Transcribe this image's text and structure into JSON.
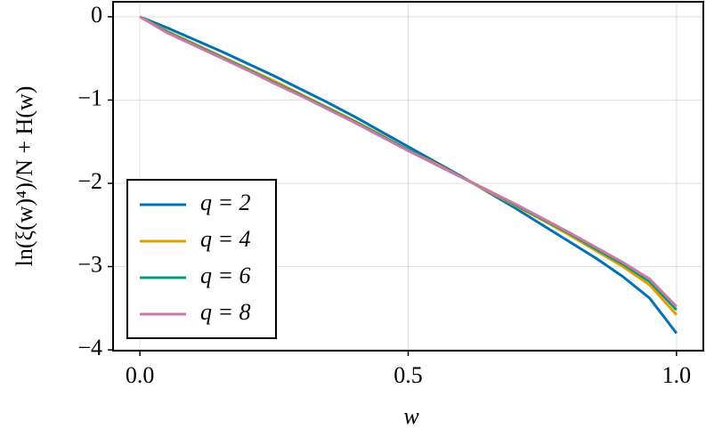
{
  "chart_data": {
    "type": "line",
    "xlabel": "w",
    "ylabel": "ln(ξ(w)⁴)/N + H(w)",
    "x": [
      0,
      0.05,
      0.1,
      0.15,
      0.2,
      0.25,
      0.3,
      0.35,
      0.4,
      0.45,
      0.5,
      0.55,
      0.6,
      0.65,
      0.7,
      0.75,
      0.8,
      0.85,
      0.9,
      0.95,
      1.0
    ],
    "series": [
      {
        "name": "q = 2",
        "color": "#0072b2",
        "values": [
          0,
          -0.13,
          -0.27,
          -0.41,
          -0.56,
          -0.71,
          -0.87,
          -1.03,
          -1.2,
          -1.38,
          -1.56,
          -1.74,
          -1.92,
          -2.11,
          -2.3,
          -2.5,
          -2.7,
          -2.9,
          -3.12,
          -3.38,
          -3.8
        ]
      },
      {
        "name": "q = 4",
        "color": "#e69f00",
        "values": [
          0,
          -0.17,
          -0.32,
          -0.47,
          -0.62,
          -0.77,
          -0.93,
          -1.09,
          -1.25,
          -1.42,
          -1.6,
          -1.76,
          -1.93,
          -2.1,
          -2.27,
          -2.44,
          -2.62,
          -2.81,
          -3.0,
          -3.22,
          -3.58
        ]
      },
      {
        "name": "q = 6",
        "color": "#009e73",
        "values": [
          0,
          -0.18,
          -0.33,
          -0.48,
          -0.63,
          -0.79,
          -0.94,
          -1.1,
          -1.26,
          -1.43,
          -1.6,
          -1.77,
          -1.93,
          -2.09,
          -2.26,
          -2.43,
          -2.6,
          -2.79,
          -2.97,
          -3.18,
          -3.52
        ]
      },
      {
        "name": "q = 8",
        "color": "#cc79a7",
        "values": [
          0,
          -0.19,
          -0.34,
          -0.49,
          -0.64,
          -0.8,
          -0.95,
          -1.11,
          -1.27,
          -1.44,
          -1.61,
          -1.77,
          -1.93,
          -2.09,
          -2.25,
          -2.42,
          -2.59,
          -2.77,
          -2.95,
          -3.15,
          -3.48
        ]
      }
    ],
    "xlim": [
      -0.05,
      1.05
    ],
    "ylim": [
      -4.01,
      0.18
    ],
    "xticks": [
      {
        "value": 0,
        "label": "0.0"
      },
      {
        "value": 0.5,
        "label": "0.5"
      },
      {
        "value": 1,
        "label": "1.0"
      }
    ],
    "yticks": [
      {
        "value": -4,
        "label": "−4"
      },
      {
        "value": -3,
        "label": "−3"
      },
      {
        "value": -2,
        "label": "−2"
      },
      {
        "value": -1,
        "label": "−1"
      },
      {
        "value": 0,
        "label": "0"
      }
    ],
    "grid": true,
    "legend": "lower-left"
  }
}
